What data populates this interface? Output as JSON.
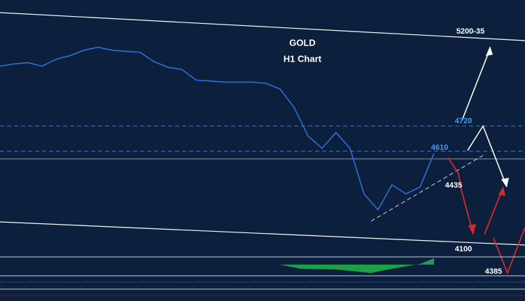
{
  "chart_data": {
    "type": "line",
    "title": "GOLD",
    "subtitle": "H1 Chart",
    "series": [
      {
        "name": "GOLD H1",
        "color": "#2f6fd6",
        "values": [
          4980,
          4990,
          4995,
          4980,
          5010,
          5026,
          5050,
          5063,
          5050,
          5045,
          5041,
          5000,
          4975,
          4965,
          4919,
          4915,
          4910,
          4910,
          4910,
          4905,
          4880,
          4800,
          4674,
          4620,
          4689,
          4620,
          4420,
          4350,
          4460,
          4420,
          4450,
          4598
        ]
      }
    ],
    "ylim": [
      4150,
      5270
    ],
    "annotations": [
      "5200-35",
      "4720",
      "4610",
      "4435",
      "4100",
      "4385"
    ]
  }
}
